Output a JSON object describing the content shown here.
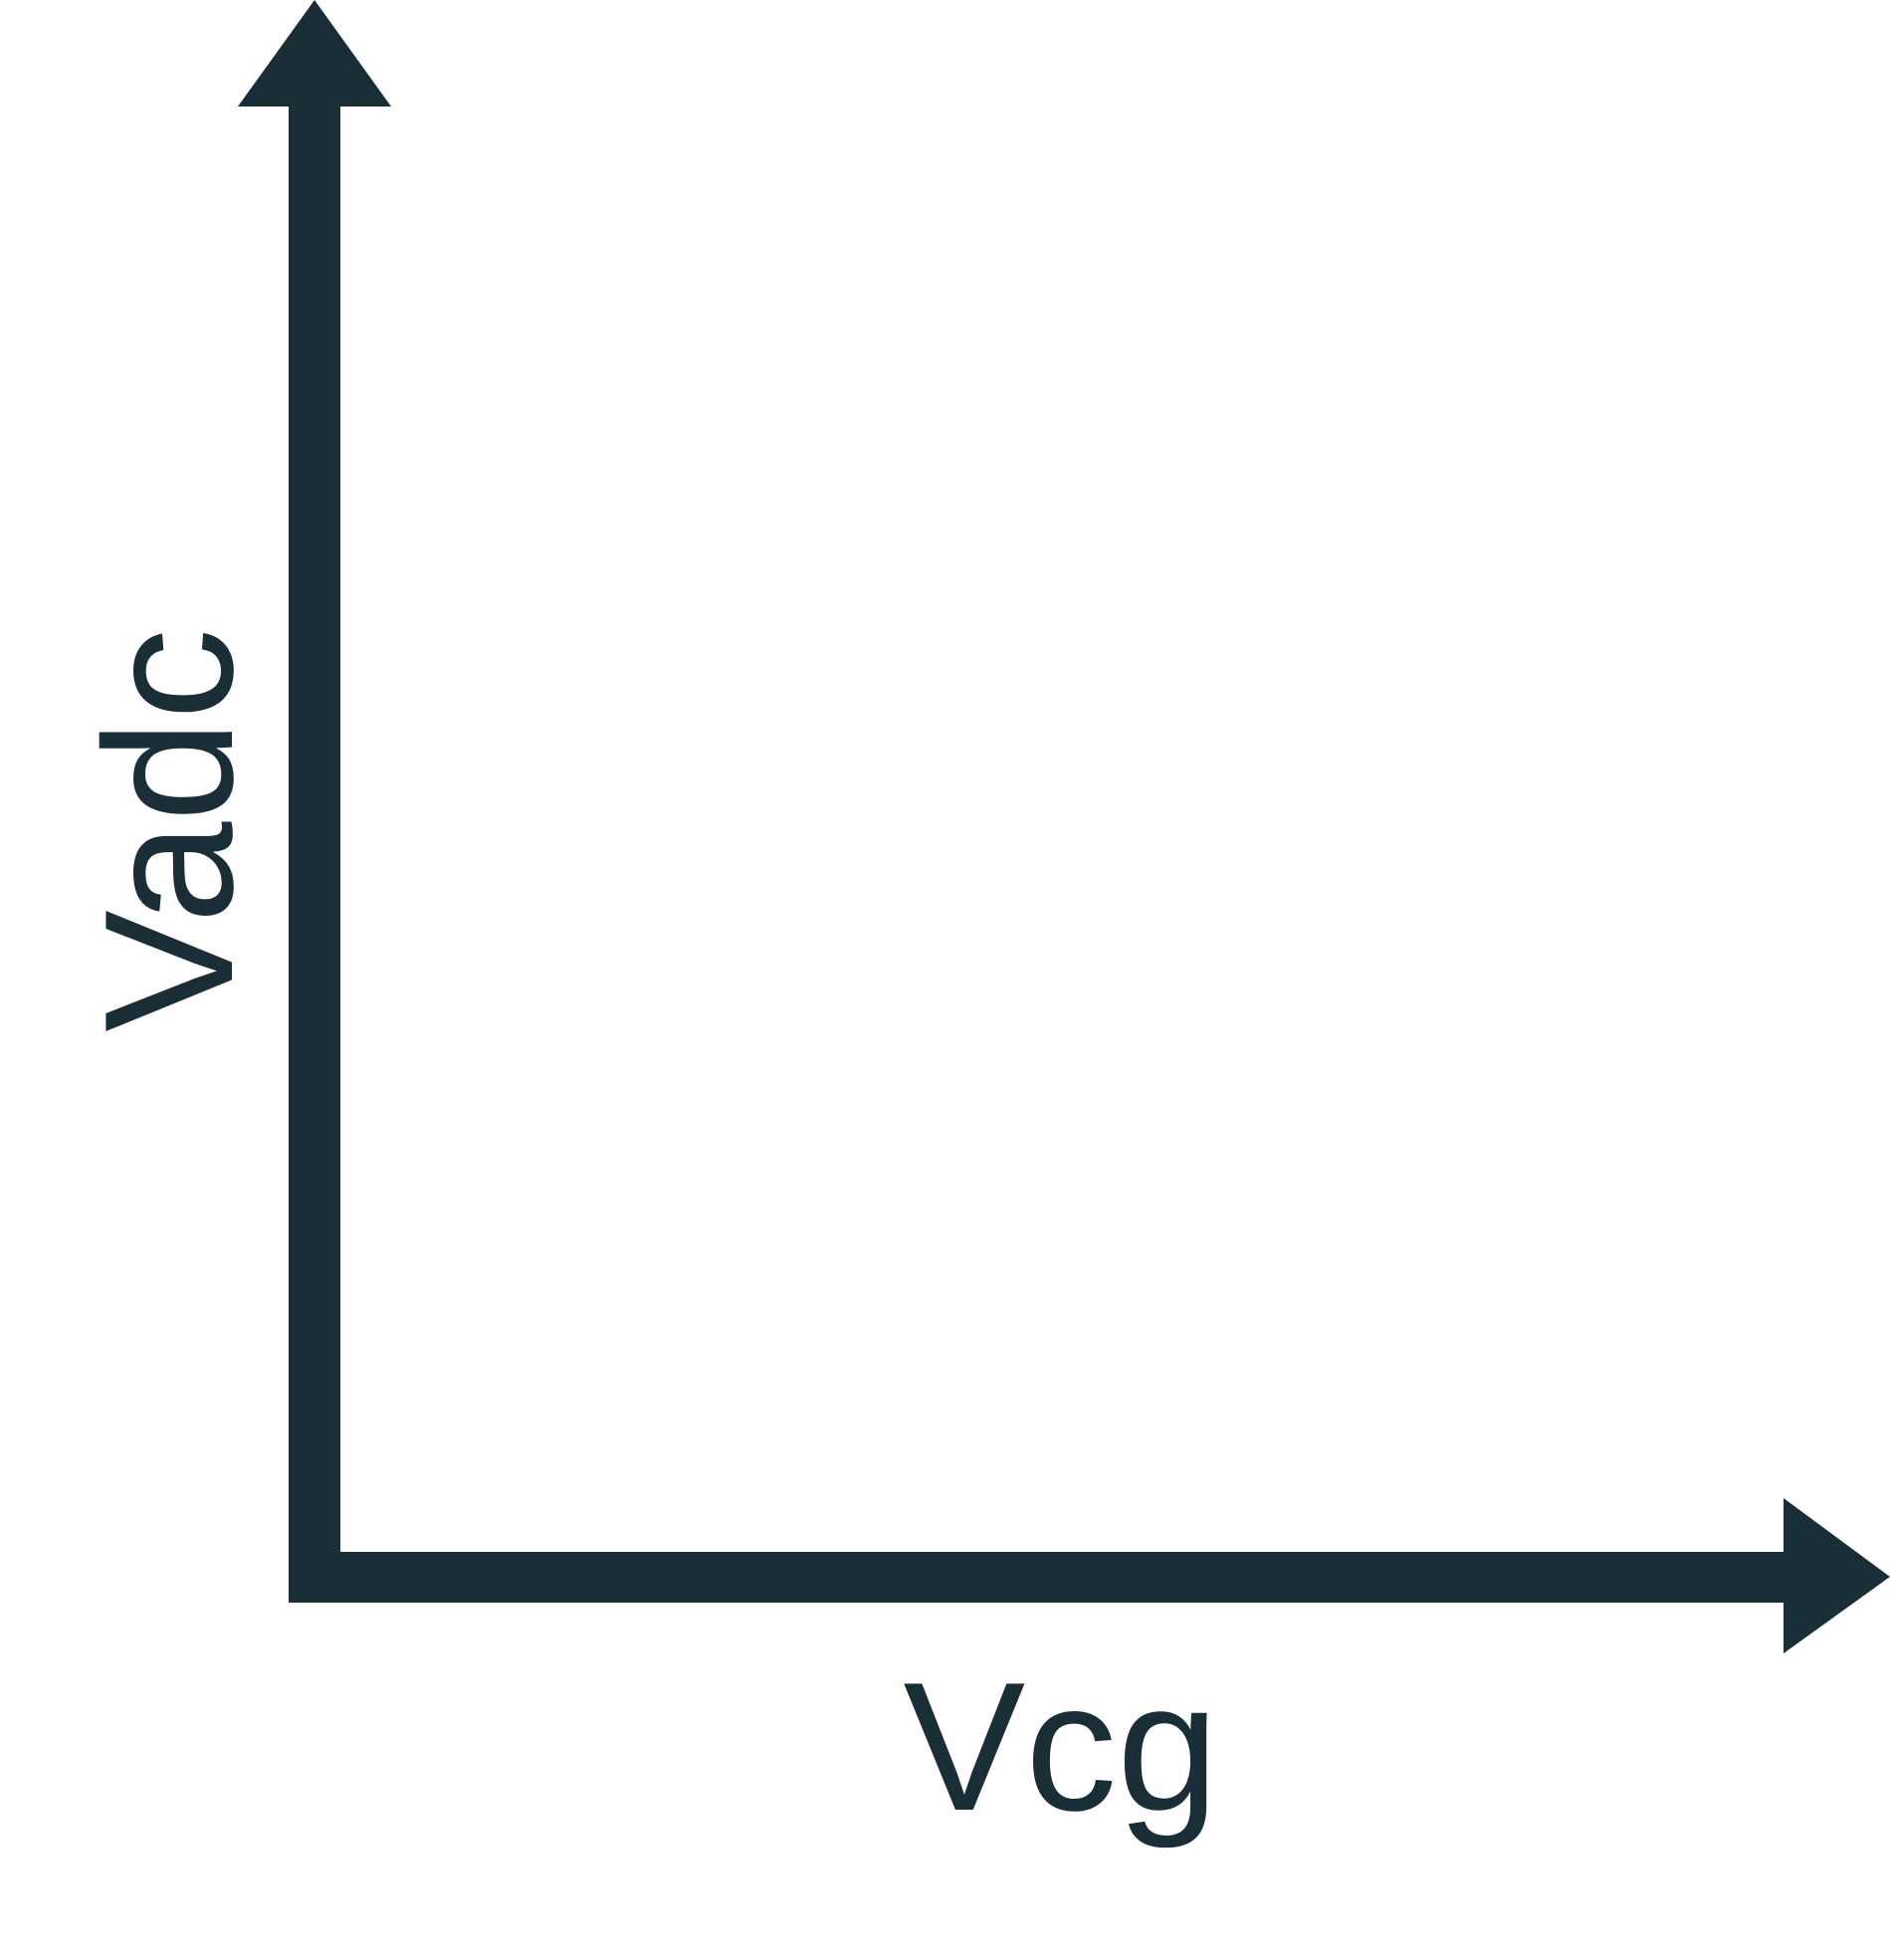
{
  "diagram": {
    "y_axis_label": "Vadc",
    "x_axis_label": "Vcg",
    "colors": {
      "stroke": "#1a2e38",
      "background": "#ffffff"
    }
  }
}
